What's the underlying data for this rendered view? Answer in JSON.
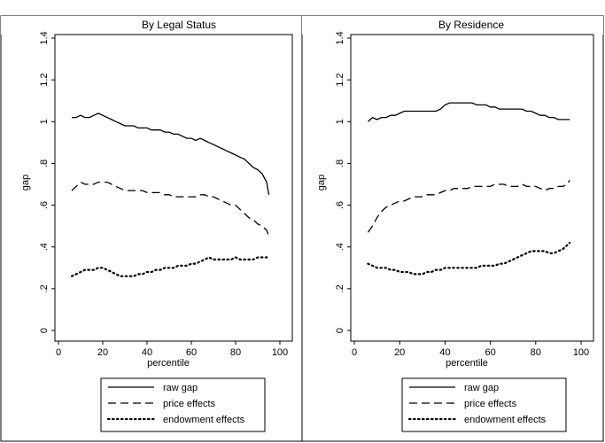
{
  "chart_data": [
    {
      "type": "line",
      "title": "By Legal Status",
      "xlabel": "percentile",
      "ylabel": "gap",
      "xlim": [
        0,
        100
      ],
      "ylim": [
        0,
        1.4
      ],
      "xticks": [
        "0",
        "20",
        "40",
        "60",
        "80",
        "100"
      ],
      "yticks": [
        "0",
        ".2",
        ".4",
        ".6",
        ".8",
        "1",
        "1.2",
        "1.4"
      ],
      "legend_position": "bottom",
      "grid": false,
      "series": [
        {
          "name": "raw gap",
          "style": "solid",
          "x": [
            6,
            8,
            10,
            12,
            14,
            16,
            18,
            20,
            22,
            24,
            26,
            28,
            30,
            32,
            34,
            36,
            38,
            40,
            42,
            44,
            46,
            48,
            50,
            52,
            54,
            56,
            58,
            60,
            62,
            64,
            66,
            68,
            70,
            72,
            74,
            76,
            78,
            80,
            82,
            84,
            86,
            88,
            90,
            92,
            94,
            95
          ],
          "y": [
            1.02,
            1.02,
            1.03,
            1.02,
            1.02,
            1.03,
            1.04,
            1.03,
            1.02,
            1.01,
            1.0,
            0.99,
            0.98,
            0.98,
            0.98,
            0.97,
            0.97,
            0.97,
            0.96,
            0.96,
            0.96,
            0.95,
            0.95,
            0.94,
            0.94,
            0.93,
            0.92,
            0.92,
            0.91,
            0.92,
            0.91,
            0.9,
            0.89,
            0.88,
            0.87,
            0.86,
            0.85,
            0.84,
            0.83,
            0.82,
            0.8,
            0.78,
            0.77,
            0.75,
            0.71,
            0.65
          ]
        },
        {
          "name": "price effects",
          "style": "dash",
          "x": [
            6,
            8,
            10,
            12,
            14,
            16,
            18,
            20,
            22,
            24,
            26,
            28,
            30,
            32,
            34,
            36,
            38,
            40,
            42,
            44,
            46,
            48,
            50,
            52,
            54,
            56,
            58,
            60,
            62,
            64,
            66,
            68,
            70,
            72,
            74,
            76,
            78,
            80,
            82,
            84,
            86,
            88,
            90,
            92,
            94,
            95
          ],
          "y": [
            0.67,
            0.69,
            0.71,
            0.7,
            0.7,
            0.7,
            0.71,
            0.71,
            0.71,
            0.7,
            0.69,
            0.68,
            0.67,
            0.67,
            0.67,
            0.67,
            0.67,
            0.66,
            0.66,
            0.66,
            0.66,
            0.65,
            0.65,
            0.64,
            0.64,
            0.64,
            0.64,
            0.64,
            0.64,
            0.65,
            0.65,
            0.64,
            0.64,
            0.63,
            0.62,
            0.61,
            0.6,
            0.6,
            0.58,
            0.56,
            0.54,
            0.53,
            0.51,
            0.5,
            0.48,
            0.45
          ]
        },
        {
          "name": "endowment effects",
          "style": "dot",
          "x": [
            6,
            8,
            10,
            12,
            14,
            16,
            18,
            20,
            22,
            24,
            26,
            28,
            30,
            32,
            34,
            36,
            38,
            40,
            42,
            44,
            46,
            48,
            50,
            52,
            54,
            56,
            58,
            60,
            62,
            64,
            66,
            68,
            70,
            72,
            74,
            76,
            78,
            80,
            82,
            84,
            86,
            88,
            90,
            92,
            94,
            95
          ],
          "y": [
            0.26,
            0.27,
            0.28,
            0.29,
            0.29,
            0.29,
            0.3,
            0.3,
            0.29,
            0.28,
            0.27,
            0.26,
            0.26,
            0.26,
            0.26,
            0.27,
            0.27,
            0.28,
            0.28,
            0.29,
            0.29,
            0.3,
            0.3,
            0.3,
            0.31,
            0.31,
            0.31,
            0.32,
            0.32,
            0.33,
            0.34,
            0.35,
            0.34,
            0.34,
            0.34,
            0.34,
            0.34,
            0.35,
            0.34,
            0.34,
            0.34,
            0.34,
            0.35,
            0.35,
            0.35,
            0.35
          ]
        }
      ]
    },
    {
      "type": "line",
      "title": "By Residence",
      "xlabel": "percentile",
      "ylabel": "gap",
      "xlim": [
        0,
        100
      ],
      "ylim": [
        0,
        1.4
      ],
      "xticks": [
        "0",
        "20",
        "40",
        "60",
        "80",
        "100"
      ],
      "yticks": [
        "0",
        ".2",
        ".4",
        ".6",
        ".8",
        "1",
        "1.2",
        "1.4"
      ],
      "legend_position": "bottom",
      "grid": false,
      "series": [
        {
          "name": "raw gap",
          "style": "solid",
          "x": [
            6,
            8,
            10,
            12,
            14,
            16,
            18,
            20,
            22,
            24,
            26,
            28,
            30,
            32,
            34,
            36,
            38,
            40,
            42,
            44,
            46,
            48,
            50,
            52,
            54,
            56,
            58,
            60,
            62,
            64,
            66,
            68,
            70,
            72,
            74,
            76,
            78,
            80,
            82,
            84,
            86,
            88,
            90,
            92,
            94,
            95
          ],
          "y": [
            1.0,
            1.02,
            1.01,
            1.02,
            1.02,
            1.03,
            1.03,
            1.04,
            1.05,
            1.05,
            1.05,
            1.05,
            1.05,
            1.05,
            1.05,
            1.05,
            1.06,
            1.08,
            1.09,
            1.09,
            1.09,
            1.09,
            1.09,
            1.09,
            1.08,
            1.08,
            1.08,
            1.07,
            1.07,
            1.06,
            1.06,
            1.06,
            1.06,
            1.06,
            1.06,
            1.05,
            1.05,
            1.04,
            1.03,
            1.03,
            1.02,
            1.02,
            1.01,
            1.01,
            1.01,
            1.01
          ]
        },
        {
          "name": "price effects",
          "style": "dash",
          "x": [
            6,
            8,
            10,
            12,
            14,
            16,
            18,
            20,
            22,
            24,
            26,
            28,
            30,
            32,
            34,
            36,
            38,
            40,
            42,
            44,
            46,
            48,
            50,
            52,
            54,
            56,
            58,
            60,
            62,
            64,
            66,
            68,
            70,
            72,
            74,
            76,
            78,
            80,
            82,
            84,
            86,
            88,
            90,
            92,
            94,
            95
          ],
          "y": [
            0.47,
            0.5,
            0.54,
            0.57,
            0.59,
            0.6,
            0.61,
            0.62,
            0.62,
            0.63,
            0.64,
            0.64,
            0.64,
            0.65,
            0.65,
            0.65,
            0.66,
            0.67,
            0.67,
            0.68,
            0.68,
            0.68,
            0.68,
            0.69,
            0.69,
            0.69,
            0.69,
            0.69,
            0.7,
            0.7,
            0.7,
            0.69,
            0.69,
            0.69,
            0.7,
            0.69,
            0.69,
            0.69,
            0.68,
            0.67,
            0.68,
            0.68,
            0.69,
            0.69,
            0.7,
            0.72
          ]
        },
        {
          "name": "endowment effects",
          "style": "dot",
          "x": [
            6,
            8,
            10,
            12,
            14,
            16,
            18,
            20,
            22,
            24,
            26,
            28,
            30,
            32,
            34,
            36,
            38,
            40,
            42,
            44,
            46,
            48,
            50,
            52,
            54,
            56,
            58,
            60,
            62,
            64,
            66,
            68,
            70,
            72,
            74,
            76,
            78,
            80,
            82,
            84,
            86,
            88,
            90,
            92,
            94,
            95
          ],
          "y": [
            0.32,
            0.31,
            0.3,
            0.3,
            0.3,
            0.29,
            0.29,
            0.28,
            0.28,
            0.28,
            0.27,
            0.27,
            0.27,
            0.28,
            0.28,
            0.29,
            0.29,
            0.3,
            0.3,
            0.3,
            0.3,
            0.3,
            0.3,
            0.3,
            0.3,
            0.31,
            0.31,
            0.31,
            0.31,
            0.32,
            0.32,
            0.33,
            0.34,
            0.35,
            0.36,
            0.37,
            0.38,
            0.38,
            0.38,
            0.38,
            0.37,
            0.37,
            0.38,
            0.39,
            0.41,
            0.42
          ]
        }
      ]
    }
  ]
}
